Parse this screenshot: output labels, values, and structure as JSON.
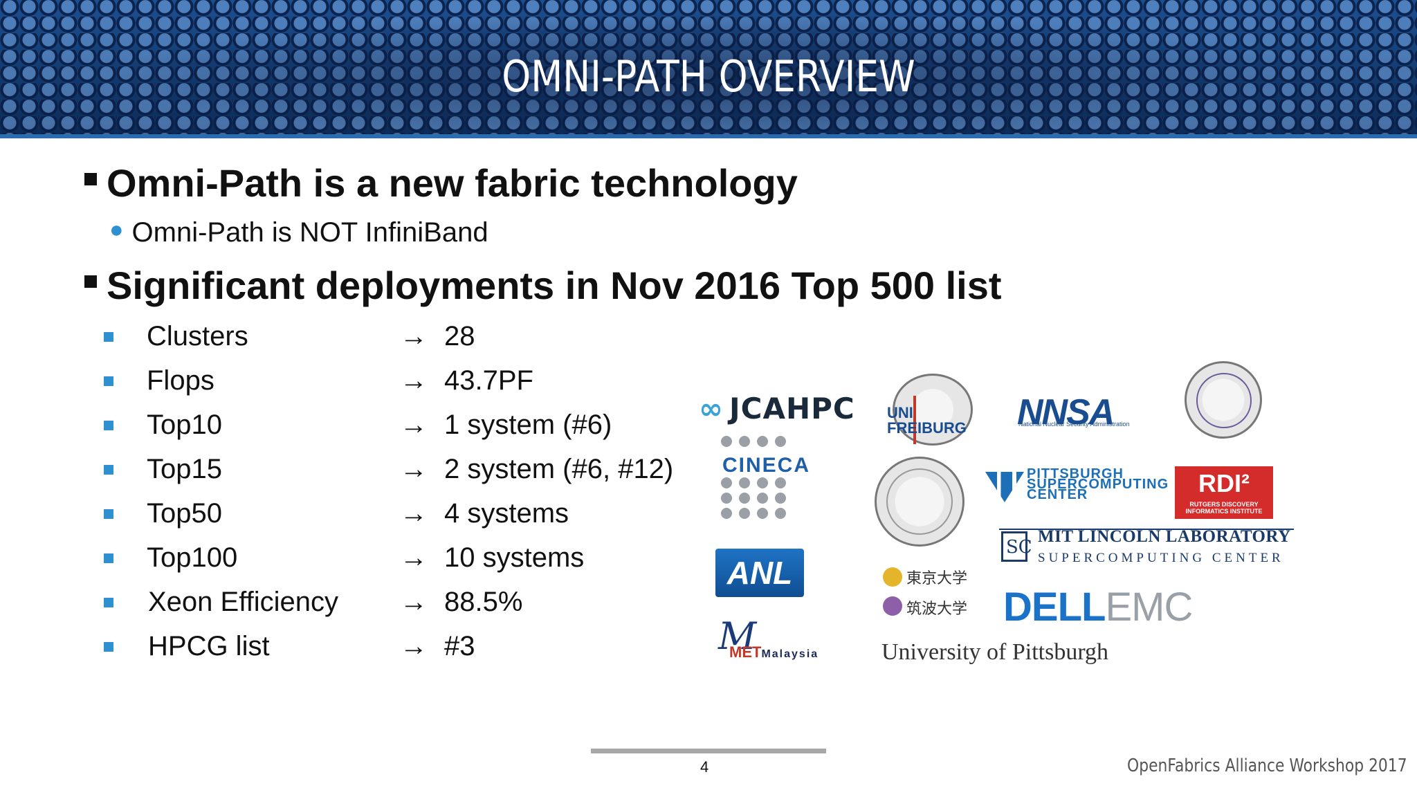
{
  "title": "OMNI-PATH OVERVIEW",
  "bullets": {
    "b1": "Omni-Path is a new fabric technology",
    "b1_sub": "Omni-Path is NOT InfiniBand",
    "b2": "Significant deployments in Nov 2016 Top 500 list"
  },
  "arrow_glyph": "→",
  "stats": [
    {
      "label": "Clusters",
      "value": "28"
    },
    {
      "label": "Flops",
      "value": "43.7PF"
    },
    {
      "label": "Top10",
      "value": "1 system (#6)"
    },
    {
      "label": "Top15",
      "value": "2 system (#6, #12)"
    },
    {
      "label": "Top50",
      "value": "4 systems"
    },
    {
      "label": "Top100",
      "value": "10 systems"
    },
    {
      "label": "Xeon Efficiency",
      "value": "88.5%"
    },
    {
      "label": "HPCG list",
      "value": "#3"
    }
  ],
  "logos": {
    "jcahpc": "JCAHPC",
    "cineca": "CINECA",
    "anl": "ANL",
    "met_mark": "M",
    "met_main": "MET",
    "met_sub": "Malaysia",
    "freiburg_1": "UNI",
    "freiburg_2": "FREIBURG",
    "nnsa": "NNSA",
    "nnsa_sub": "National Nuclear Security Administration",
    "pitt_1": "PITTSBURGH",
    "pitt_2": "SUPERCOMPUTING",
    "pitt_3": "CENTER",
    "rdi_big": "RDI²",
    "rdi_small_1": "RUTGERS DISCOVERY",
    "rdi_small_2": "INFORMATICS INSTITUTE",
    "mitll_mark": "SC",
    "mitll": "MIT LINCOLN LABORATORY",
    "mitll_sub": "SUPERCOMPUTING CENTER",
    "tokyo": "東京大学",
    "tsukuba": "筑波大学",
    "dell": "DELL",
    "emc": "EMC",
    "pitt_univ": "University of Pittsburgh"
  },
  "footer": {
    "page": "4",
    "event": "OpenFabrics Alliance Workshop 2017"
  },
  "colors": {
    "banner": "#123a6e",
    "bullet_blue": "#2e8fd1",
    "rdi_red": "#d42b2b",
    "dell_blue": "#1a73c8"
  }
}
